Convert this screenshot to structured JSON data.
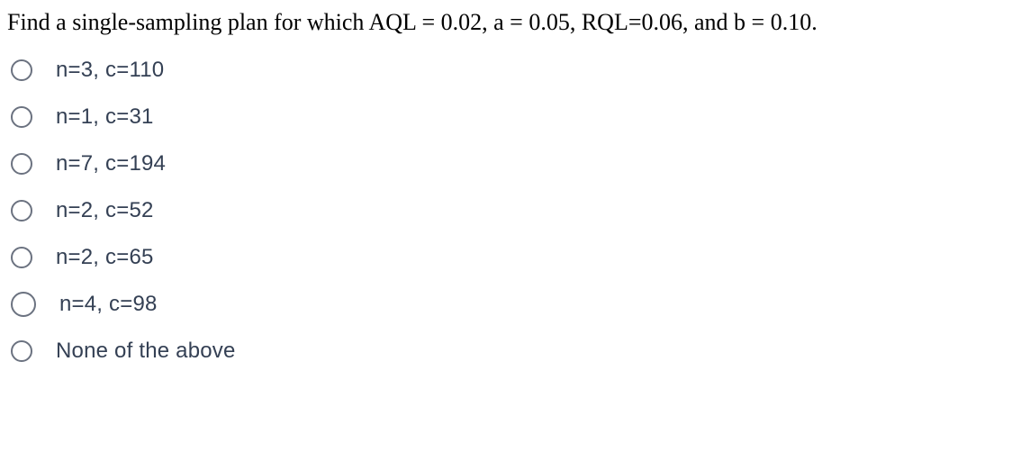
{
  "question": {
    "text": "Find a single-sampling plan for which AQL = 0.02, a = 0.05, RQL=0.06, and b = 0.10.",
    "text_color": "#000000",
    "font_size": 26,
    "font_family": "Times New Roman"
  },
  "options": [
    {
      "label": "n=3, c=110",
      "selected": false,
      "radio_size": "normal"
    },
    {
      "label": "n=1, c=31",
      "selected": false,
      "radio_size": "normal"
    },
    {
      "label": "n=7, c=194",
      "selected": false,
      "radio_size": "normal"
    },
    {
      "label": "n=2, c=52",
      "selected": false,
      "radio_size": "normal"
    },
    {
      "label": "n=2, c=65",
      "selected": false,
      "radio_size": "normal"
    },
    {
      "label": "n=4, c=98",
      "selected": false,
      "radio_size": "larger"
    },
    {
      "label": "None of the above",
      "selected": false,
      "radio_size": "normal"
    }
  ],
  "styling": {
    "background_color": "#ffffff",
    "option_text_color": "#344054",
    "option_font_size": 24,
    "option_font_family": "sans-serif",
    "radio_border_color": "#6b7280",
    "radio_border_width": 2,
    "option_gap": 24
  }
}
